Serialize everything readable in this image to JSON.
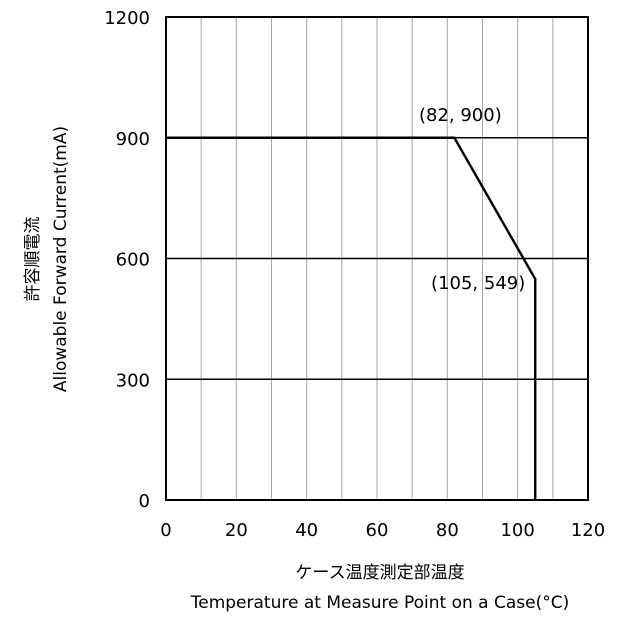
{
  "chart_data": {
    "type": "line",
    "title": "",
    "xlabel_jp": "ケース温度測定部温度",
    "xlabel": "Temperature at Measure Point on a Case(°C)",
    "ylabel_jp": "許容順電流",
    "ylabel": "Allowable Forward Current(mA)",
    "xlim": [
      0,
      120
    ],
    "ylim": [
      0,
      1200
    ],
    "x_ticks": [
      "0",
      "20",
      "40",
      "60",
      "80",
      "100",
      "120"
    ],
    "y_ticks": [
      "0",
      "300",
      "600",
      "900",
      "1200"
    ],
    "grid": true,
    "series": [
      {
        "x": [
          0,
          82,
          105,
          105
        ],
        "y": [
          900,
          900,
          549,
          0
        ]
      }
    ],
    "annotations": [
      {
        "text": "(82, 900)",
        "x": 82,
        "y": 900
      },
      {
        "text": "(105, 549)",
        "x": 105,
        "y": 549
      }
    ]
  }
}
